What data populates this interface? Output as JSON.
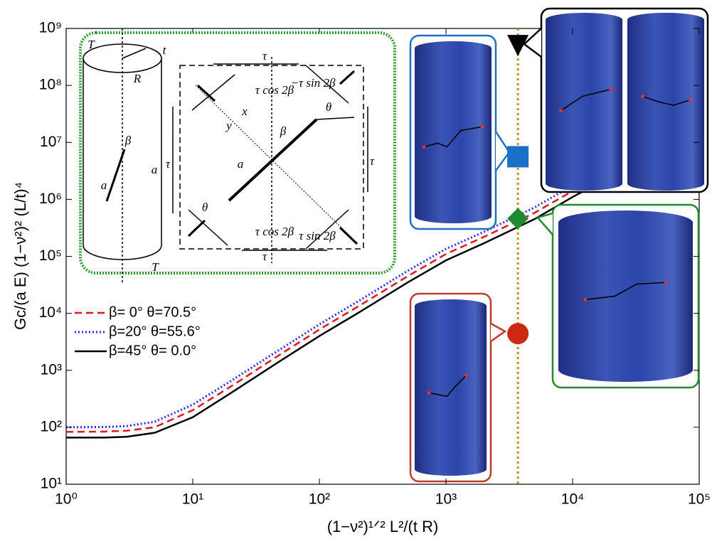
{
  "chart_data": {
    "type": "line",
    "xlabel": "(1−ν²)¹ᐟ² L²/(t R)",
    "ylabel": "Gc/(a E) (1−ν²)² (L/t)⁴",
    "log_x": true,
    "log_y": true,
    "xlim": [
      1,
      100000
    ],
    "ylim": [
      10,
      1000000000
    ],
    "xticks": [
      {
        "value": 1,
        "label": "10⁰"
      },
      {
        "value": 10,
        "label": "10¹"
      },
      {
        "value": 100,
        "label": "10²"
      },
      {
        "value": 1000,
        "label": "10³"
      },
      {
        "value": 10000,
        "label": "10⁴"
      },
      {
        "value": 100000,
        "label": "10⁵"
      }
    ],
    "yticks": [
      {
        "value": 10,
        "label": "10¹"
      },
      {
        "value": 100,
        "label": "10²"
      },
      {
        "value": 1000,
        "label": "10³"
      },
      {
        "value": 10000,
        "label": "10⁴"
      },
      {
        "value": 100000,
        "label": "10⁵"
      },
      {
        "value": 1000000,
        "label": "10⁶"
      },
      {
        "value": 10000000,
        "label": "10⁷"
      },
      {
        "value": 100000000,
        "label": "10⁸"
      },
      {
        "value": 1000000000,
        "label": "10⁹"
      }
    ],
    "x": [
      1,
      2,
      3,
      5,
      10,
      20,
      50,
      100,
      200,
      500,
      1000,
      2000,
      5000,
      10000,
      20000
    ],
    "series": [
      {
        "name": "β= 0°  θ=70.5°",
        "color": "#e8141b",
        "style": "dashed",
        "values": [
          83,
          84,
          87,
          100,
          200,
          520,
          1950,
          5200,
          13000,
          45000,
          110000,
          220000,
          580000,
          1400000,
          3200000
        ]
      },
      {
        "name": "β=20°  θ=55.6°",
        "color": "#2a2aff",
        "style": "dotted",
        "values": [
          100,
          101,
          105,
          125,
          250,
          650,
          2400,
          6400,
          16000,
          56000,
          135000,
          270000,
          720000,
          1750000,
          4000000
        ]
      },
      {
        "name": "β=45°  θ= 0.0°",
        "color": "#000000",
        "style": "solid",
        "values": [
          66,
          66,
          68,
          80,
          150,
          400,
          1500,
          4000,
          10000,
          35000,
          85000,
          170000,
          450000,
          1100000,
          2500000
        ]
      }
    ],
    "vline": {
      "x": 3700,
      "color": "#c58a1a"
    },
    "markers": [
      {
        "shape": "triangle",
        "color": "#000000",
        "y": 500000000
      },
      {
        "shape": "square",
        "color": "#1c6fc7",
        "y": 5600000
      },
      {
        "shape": "diamond",
        "color": "#1f8a2e",
        "y": 460000
      },
      {
        "shape": "circle",
        "color": "#cc2a10",
        "y": 4400
      }
    ],
    "diagram_labels": [
      "T",
      "t",
      "R",
      "β",
      "a",
      "a",
      "T",
      "τ",
      "τ cos 2β",
      "−τ sin 2β",
      "θ",
      "x",
      "y",
      "β",
      "τ",
      "τ",
      "a",
      "θ",
      "τ cos 2β",
      "τ sin 2β",
      "τ"
    ]
  }
}
